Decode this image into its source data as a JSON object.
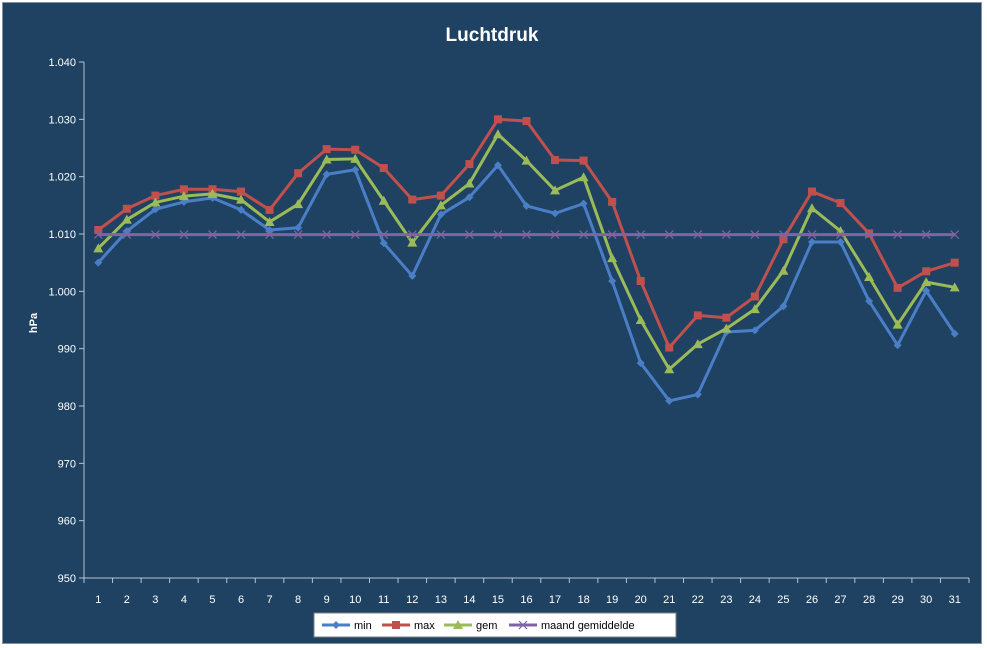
{
  "chart_data": {
    "type": "line",
    "title": "Luchtdruk",
    "xlabel": "",
    "ylabel": "hPa",
    "ylim": [
      950,
      1040
    ],
    "yticks": [
      950,
      960,
      970,
      980,
      990,
      1000,
      1010,
      1020,
      1030,
      1040
    ],
    "ytick_labels": [
      "950",
      "960",
      "970",
      "980",
      "990",
      "1.000",
      "1.010",
      "1.020",
      "1.030",
      "1.040"
    ],
    "categories": [
      "1",
      "2",
      "3",
      "4",
      "5",
      "6",
      "7",
      "8",
      "9",
      "10",
      "11",
      "12",
      "13",
      "14",
      "15",
      "16",
      "17",
      "18",
      "19",
      "20",
      "21",
      "22",
      "23",
      "24",
      "25",
      "26",
      "27",
      "28",
      "29",
      "30",
      "31"
    ],
    "grid": false,
    "legend": "bottom",
    "series": [
      {
        "name": "min",
        "color": "#4a7fc8",
        "marker": "diamond",
        "values": [
          1005.0,
          1010.5,
          1014.3,
          1015.6,
          1016.3,
          1014.2,
          1010.7,
          1011.1,
          1020.4,
          1021.2,
          1008.4,
          1002.7,
          1013.4,
          1016.4,
          1022.0,
          1014.9,
          1013.6,
          1015.3,
          1001.8,
          987.5,
          980.9,
          982.0,
          992.9,
          993.2,
          997.4,
          1008.6,
          1008.6,
          998.3,
          990.6,
          1000.1,
          992.6
        ]
      },
      {
        "name": "max",
        "color": "#c0504d",
        "marker": "square",
        "values": [
          1010.7,
          1014.4,
          1016.7,
          1017.8,
          1017.8,
          1017.4,
          1014.2,
          1020.6,
          1024.8,
          1024.7,
          1021.5,
          1016.0,
          1016.7,
          1022.2,
          1030.0,
          1029.7,
          1022.9,
          1022.8,
          1015.6,
          1001.8,
          990.2,
          995.8,
          995.4,
          999.1,
          1009.1,
          1017.4,
          1015.4,
          1010.1,
          1000.6,
          1003.5,
          1005.0
        ]
      },
      {
        "name": "gem",
        "color": "#9bbb59",
        "marker": "triangle",
        "values": [
          1007.5,
          1012.5,
          1015.5,
          1016.6,
          1017.0,
          1016.0,
          1012.1,
          1015.2,
          1023.0,
          1023.1,
          1015.8,
          1008.5,
          1015.0,
          1018.8,
          1027.4,
          1022.8,
          1017.6,
          1019.9,
          1005.8,
          995.0,
          986.4,
          990.8,
          993.5,
          996.9,
          1003.6,
          1014.5,
          1010.5,
          1002.5,
          994.2,
          1001.6,
          1000.7
        ]
      },
      {
        "name": "maand gemiddelde",
        "color": "#8064a2",
        "marker": "x",
        "values": [
          1009.9,
          1009.9,
          1009.9,
          1009.9,
          1009.9,
          1009.9,
          1009.9,
          1009.9,
          1009.9,
          1009.9,
          1009.9,
          1009.9,
          1009.9,
          1009.9,
          1009.9,
          1009.9,
          1009.9,
          1009.9,
          1009.9,
          1009.9,
          1009.9,
          1009.9,
          1009.9,
          1009.9,
          1009.9,
          1009.9,
          1009.9,
          1009.9,
          1009.9,
          1009.9,
          1009.9
        ]
      }
    ]
  }
}
